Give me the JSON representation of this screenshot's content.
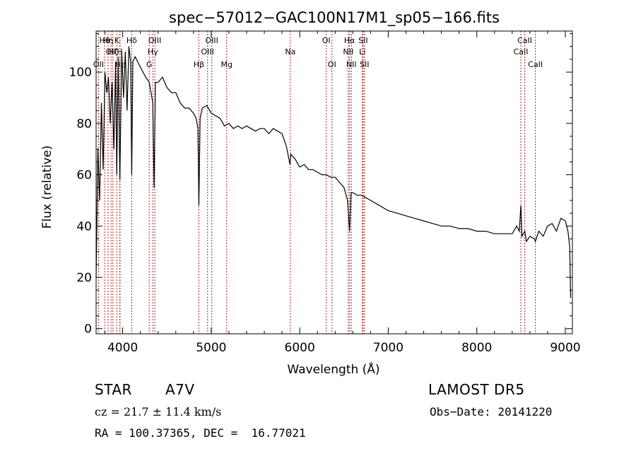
{
  "chart_data": {
    "type": "line",
    "title": "spec−57012−GAC100N17M1_sp05−166.fits",
    "xlabel": "Wavelength (Å)",
    "ylabel": "Flux (relative)",
    "xlim": [
      3700,
      9080
    ],
    "ylim": [
      -2,
      116
    ],
    "xticks": [
      4000,
      5000,
      6000,
      7000,
      8000,
      9000
    ],
    "yticks": [
      0,
      20,
      40,
      60,
      80,
      100
    ],
    "grid": false,
    "line_color": "#000000",
    "marker_color": "#b22222",
    "series": [
      {
        "x": [
          3700,
          3720,
          3740,
          3760,
          3780,
          3800,
          3820,
          3840,
          3860,
          3880,
          3900,
          3920,
          3933,
          3950,
          3968,
          3990,
          4010,
          4030,
          4050,
          4070,
          4090,
          4102,
          4115,
          4140,
          4170,
          4200,
          4230,
          4260,
          4300,
          4340,
          4355,
          4370,
          4400,
          4450,
          4500,
          4550,
          4600,
          4650,
          4700,
          4750,
          4800,
          4830,
          4850,
          4861,
          4875,
          4900,
          4950,
          5000,
          5050,
          5100,
          5150,
          5200,
          5250,
          5300,
          5350,
          5400,
          5450,
          5500,
          5550,
          5600,
          5650,
          5700,
          5750,
          5800,
          5850,
          5890,
          5900,
          5950,
          6000,
          6050,
          6100,
          6150,
          6200,
          6250,
          6300,
          6350,
          6400,
          6450,
          6500,
          6540,
          6563,
          6580,
          6600,
          6650,
          6700,
          6750,
          6800,
          6900,
          7000,
          7100,
          7200,
          7300,
          7400,
          7500,
          7600,
          7700,
          7800,
          7900,
          8000,
          8100,
          8200,
          8300,
          8400,
          8450,
          8480,
          8498,
          8510,
          8542,
          8560,
          8580,
          8600,
          8650,
          8662,
          8700,
          8750,
          8800,
          8850,
          8900,
          8950,
          9000,
          9030,
          9050,
          9060
        ],
        "y": [
          20,
          70,
          50,
          88,
          62,
          100,
          92,
          98,
          80,
          96,
          70,
          104,
          60,
          106,
          58,
          108,
          90,
          108,
          85,
          110,
          104,
          60,
          104,
          106,
          104,
          102,
          100,
          98,
          96,
          88,
          55,
          96,
          96,
          98,
          94,
          92,
          92,
          88,
          86,
          86,
          84,
          82,
          78,
          48,
          82,
          86,
          87,
          84,
          83,
          82,
          79,
          80,
          78,
          79,
          78,
          79,
          78,
          77,
          78,
          78,
          76,
          78,
          77,
          76,
          71,
          64,
          68,
          66,
          63,
          64,
          62,
          62,
          61,
          60,
          60,
          59,
          59,
          57,
          55,
          50,
          38,
          53,
          53,
          52,
          52,
          51,
          50,
          48,
          46,
          45,
          44,
          43,
          42,
          41,
          40,
          40,
          39,
          39,
          38,
          38,
          37,
          37,
          37,
          40,
          38,
          48,
          36,
          38,
          34,
          35,
          36,
          35,
          34,
          38,
          36,
          40,
          41,
          38,
          43,
          42,
          38,
          32,
          12
        ]
      }
    ],
    "line_markers": [
      {
        "wl": 3727,
        "label": "OII",
        "row": 3
      },
      {
        "wl": 3797,
        "label": "Hθ",
        "row": 1
      },
      {
        "wl": 3835,
        "label": "Hη",
        "row": 1
      },
      {
        "wl": 3869,
        "label": "OII",
        "row": 2
      },
      {
        "wl": 3889,
        "label": "Hζ",
        "row": 2
      },
      {
        "wl": 3934,
        "label": "K",
        "row": 1
      },
      {
        "wl": 3968,
        "label": "H",
        "row": 2
      },
      {
        "wl": 3970,
        "label": "Hε",
        "row": 3
      },
      {
        "wl": 4102,
        "label": "Hδ",
        "row": 1
      },
      {
        "wl": 4300,
        "label": "G",
        "row": 3
      },
      {
        "wl": 4341,
        "label": "Hγ",
        "row": 2
      },
      {
        "wl": 4363,
        "label": "OIII",
        "row": 1
      },
      {
        "wl": 4861,
        "label": "Hβ",
        "row": 3
      },
      {
        "wl": 4959,
        "label": "OIII",
        "row": 2
      },
      {
        "wl": 5007,
        "label": "OIII",
        "row": 1
      },
      {
        "wl": 5175,
        "label": "Mg",
        "row": 3
      },
      {
        "wl": 5894,
        "label": "Na",
        "row": 2
      },
      {
        "wl": 6300,
        "label": "OI",
        "row": 1
      },
      {
        "wl": 6364,
        "label": "OI",
        "row": 3
      },
      {
        "wl": 6548,
        "label": "NII",
        "row": 2
      },
      {
        "wl": 6563,
        "label": "Hα",
        "row": 1
      },
      {
        "wl": 6583,
        "label": "NII",
        "row": 3
      },
      {
        "wl": 6707,
        "label": "Li",
        "row": 2
      },
      {
        "wl": 6716,
        "label": "SII",
        "row": 1
      },
      {
        "wl": 6731,
        "label": "SII",
        "row": 3
      },
      {
        "wl": 8498,
        "label": "CaII",
        "row": 2
      },
      {
        "wl": 8542,
        "label": "CaII",
        "row": 1
      },
      {
        "wl": 8662,
        "label": "CaII",
        "row": 3
      }
    ]
  },
  "info": {
    "object_class": "STAR",
    "subclass": "A7V",
    "survey": "LAMOST DR5",
    "redshift": "cz = 21.7 ± 11.4 km/s",
    "obs_date": "Obs−Date: 20141220",
    "coords": "RA = 100.37365, DEC =  16.77021"
  }
}
